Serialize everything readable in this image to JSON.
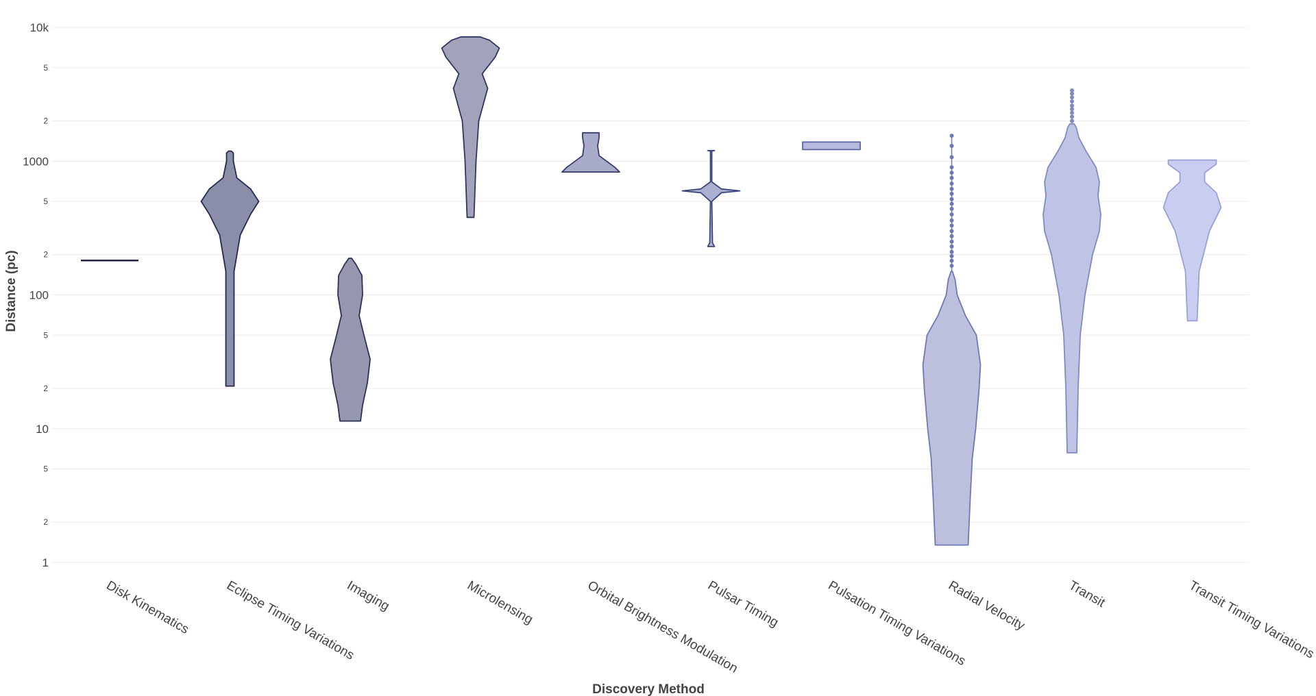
{
  "chart_data": {
    "type": "violin",
    "xlabel": "Discovery Method",
    "ylabel": "Distance (pc)",
    "y_scale": "log",
    "ylim": [
      1,
      10000
    ],
    "grid": "horizontal",
    "y_major_ticks": [
      {
        "value": 1,
        "label": "1"
      },
      {
        "value": 10,
        "label": "10"
      },
      {
        "value": 100,
        "label": "100"
      },
      {
        "value": 1000,
        "label": "1000"
      },
      {
        "value": 10000,
        "label": "10k"
      }
    ],
    "y_minor_ticks": [
      {
        "value": 2,
        "label": "2"
      },
      {
        "value": 5,
        "label": "5"
      },
      {
        "value": 20,
        "label": "2"
      },
      {
        "value": 50,
        "label": "5"
      },
      {
        "value": 200,
        "label": "2"
      },
      {
        "value": 500,
        "label": "5"
      },
      {
        "value": 2000,
        "label": "2"
      },
      {
        "value": 5000,
        "label": "5"
      }
    ],
    "categories": [
      "Disk Kinematics",
      "Eclipse Timing Variations",
      "Imaging",
      "Microlensing",
      "Orbital Brightness Modulation",
      "Pulsar Timing",
      "Pulsation Timing Variations",
      "Radial Velocity",
      "Transit",
      "Transit Timing Variations"
    ],
    "series": [
      {
        "category": "Disk Kinematics",
        "min": 181,
        "max": 181,
        "stroke": "#1f2345",
        "fill": "#1f2345",
        "profile": [
          [
            181,
            42
          ]
        ]
      },
      {
        "category": "Eclipse Timing Variations",
        "min": 20.8,
        "max": 1190,
        "stroke": "#232a4f",
        "fill": "#8b8ea9",
        "profile": [
          [
            20.8,
            6
          ],
          [
            150,
            6
          ],
          [
            280,
            15
          ],
          [
            400,
            30
          ],
          [
            500,
            42
          ],
          [
            620,
            30
          ],
          [
            750,
            10
          ],
          [
            1000,
            5
          ],
          [
            1150,
            5
          ],
          [
            1190,
            2
          ]
        ]
      },
      {
        "category": "Imaging",
        "min": 11.4,
        "max": 188,
        "stroke": "#2b3156",
        "fill": "#9597ae",
        "profile": [
          [
            11.4,
            15
          ],
          [
            15,
            18
          ],
          [
            22,
            25
          ],
          [
            33,
            29
          ],
          [
            50,
            20
          ],
          [
            70,
            13
          ],
          [
            100,
            18
          ],
          [
            140,
            17
          ],
          [
            170,
            8
          ],
          [
            188,
            2
          ]
        ]
      },
      {
        "category": "Microlensing",
        "min": 380,
        "max": 8500,
        "stroke": "#2e3560",
        "fill": "#a1a3bb",
        "profile": [
          [
            380,
            5
          ],
          [
            1000,
            8
          ],
          [
            2000,
            12
          ],
          [
            3500,
            25
          ],
          [
            4500,
            17
          ],
          [
            6000,
            36
          ],
          [
            7000,
            42
          ],
          [
            8000,
            28
          ],
          [
            8500,
            14
          ]
        ]
      },
      {
        "category": "Orbital Brightness Modulation",
        "min": 830,
        "max": 1630,
        "stroke": "#353d6b",
        "fill": "#a8abc9",
        "profile": [
          [
            830,
            42
          ],
          [
            900,
            35
          ],
          [
            1100,
            12
          ],
          [
            1300,
            10
          ],
          [
            1500,
            12
          ],
          [
            1630,
            12
          ]
        ]
      },
      {
        "category": "Pulsar Timing",
        "min": 230,
        "max": 1200,
        "stroke": "#3a4478",
        "fill": "#aab0d0",
        "profile": [
          [
            230,
            5
          ],
          [
            245,
            2
          ],
          [
            500,
            1
          ],
          [
            580,
            15
          ],
          [
            600,
            42
          ],
          [
            620,
            15
          ],
          [
            700,
            1
          ],
          [
            1190,
            1
          ],
          [
            1200,
            5
          ]
        ]
      },
      {
        "category": "Pulsation Timing Variations",
        "min": 1220,
        "max": 1390,
        "stroke": "#5a66a6",
        "fill": "#b6bbdd",
        "profile": [
          [
            1220,
            42
          ],
          [
            1390,
            42
          ]
        ]
      },
      {
        "category": "Radial Velocity",
        "min": 1.35,
        "max": 150,
        "stroke": "#6d78b7",
        "fill": "#bcc0dd",
        "profile": [
          [
            1.35,
            24
          ],
          [
            3,
            27
          ],
          [
            6,
            30
          ],
          [
            10,
            35
          ],
          [
            20,
            40
          ],
          [
            30,
            42
          ],
          [
            50,
            36
          ],
          [
            70,
            20
          ],
          [
            100,
            8
          ],
          [
            130,
            5
          ],
          [
            150,
            1
          ]
        ],
        "outliers": [
          165,
          180,
          195,
          210,
          230,
          250,
          275,
          300,
          330,
          360,
          400,
          440,
          480,
          520,
          570,
          620,
          680,
          750,
          820,
          900,
          1070,
          1300,
          1550
        ]
      },
      {
        "category": "Transit",
        "min": 6.6,
        "max": 1900,
        "stroke": "#8089c6",
        "fill": "#bfc4e4",
        "profile": [
          [
            6.6,
            7
          ],
          [
            20,
            9
          ],
          [
            50,
            12
          ],
          [
            100,
            19
          ],
          [
            200,
            30
          ],
          [
            300,
            40
          ],
          [
            400,
            42
          ],
          [
            550,
            38
          ],
          [
            700,
            40
          ],
          [
            900,
            35
          ],
          [
            1200,
            20
          ],
          [
            1500,
            10
          ],
          [
            1800,
            6
          ],
          [
            1900,
            3
          ]
        ],
        "outliers": [
          2000,
          2150,
          2300,
          2450,
          2600,
          2800,
          3000,
          3200,
          3380
        ]
      },
      {
        "category": "Transit Timing Variations",
        "min": 64,
        "max": 1020,
        "stroke": "#97a0d8",
        "fill": "#c9cdef",
        "profile": [
          [
            64,
            7
          ],
          [
            150,
            10
          ],
          [
            300,
            25
          ],
          [
            450,
            42
          ],
          [
            580,
            35
          ],
          [
            700,
            18
          ],
          [
            820,
            18
          ],
          [
            950,
            35
          ],
          [
            1020,
            35
          ]
        ]
      }
    ]
  }
}
